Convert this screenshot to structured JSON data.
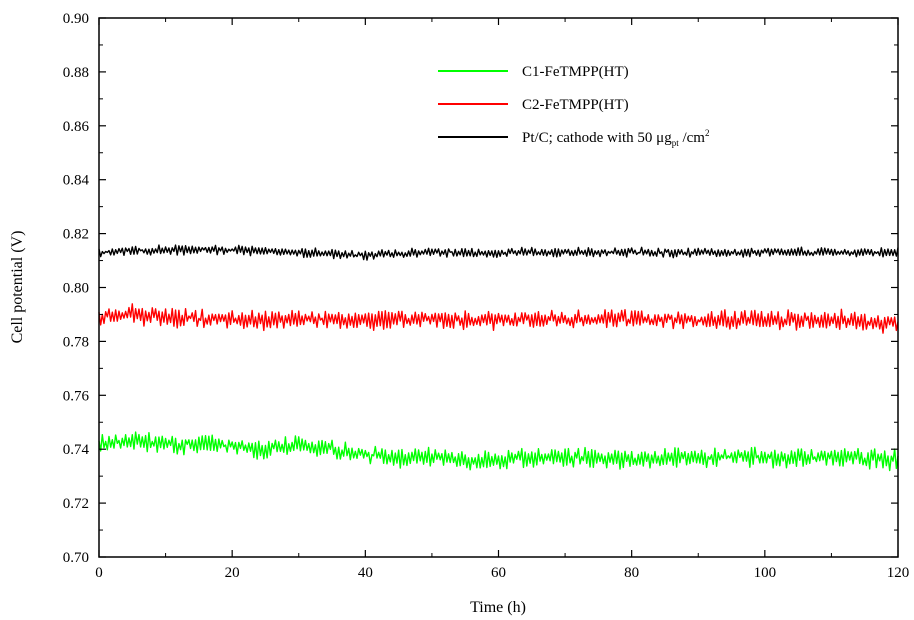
{
  "chart_data": {
    "type": "line",
    "xlabel": "Time (h)",
    "ylabel": "Cell potential (V)",
    "xlim": [
      0,
      120
    ],
    "ylim": [
      0.7,
      0.9
    ],
    "xticks": [
      0,
      20,
      40,
      60,
      80,
      100,
      120
    ],
    "yticks": [
      0.7,
      0.72,
      0.74,
      0.76,
      0.78,
      0.8,
      0.82,
      0.84,
      0.86,
      0.88,
      0.9
    ],
    "xtick_labels": [
      "0",
      "20",
      "40",
      "60",
      "80",
      "100",
      "120"
    ],
    "ytick_labels": [
      "0.70",
      "0.72",
      "0.74",
      "0.76",
      "0.78",
      "0.80",
      "0.82",
      "0.84",
      "0.86",
      "0.88",
      "0.90"
    ],
    "grid": false,
    "legend_position": "top-right",
    "series": [
      {
        "name": "C1-FeTMPP(HT)",
        "color": "#00ff00",
        "base": [
          [
            0,
            0.742
          ],
          [
            5,
            0.743
          ],
          [
            10,
            0.742
          ],
          [
            15,
            0.742
          ],
          [
            20,
            0.741
          ],
          [
            25,
            0.74
          ],
          [
            30,
            0.742
          ],
          [
            35,
            0.74
          ],
          [
            40,
            0.738
          ],
          [
            45,
            0.737
          ],
          [
            50,
            0.737
          ],
          [
            55,
            0.736
          ],
          [
            60,
            0.736
          ],
          [
            70,
            0.737
          ],
          [
            80,
            0.736
          ],
          [
            90,
            0.737
          ],
          [
            100,
            0.737
          ],
          [
            110,
            0.737
          ],
          [
            120,
            0.736
          ]
        ],
        "amplitude": 0.004
      },
      {
        "name": "C2-FeTMPP(HT)",
        "color": "#ff0000",
        "base": [
          [
            0,
            0.789
          ],
          [
            5,
            0.79
          ],
          [
            10,
            0.789
          ],
          [
            20,
            0.788
          ],
          [
            30,
            0.788
          ],
          [
            40,
            0.788
          ],
          [
            50,
            0.788
          ],
          [
            60,
            0.788
          ],
          [
            70,
            0.788
          ],
          [
            80,
            0.788
          ],
          [
            90,
            0.788
          ],
          [
            100,
            0.788
          ],
          [
            110,
            0.788
          ],
          [
            120,
            0.787
          ]
        ],
        "amplitude": 0.004
      },
      {
        "name": "Pt/C; cathode with 50 μg",
        "name_sub": "pt",
        "name_tail": " /cm",
        "name_sup": "2",
        "color": "#000000",
        "base": [
          [
            0,
            0.813
          ],
          [
            10,
            0.814
          ],
          [
            20,
            0.814
          ],
          [
            30,
            0.813
          ],
          [
            40,
            0.812
          ],
          [
            50,
            0.813
          ],
          [
            60,
            0.813
          ],
          [
            70,
            0.813
          ],
          [
            80,
            0.813
          ],
          [
            90,
            0.813
          ],
          [
            100,
            0.813
          ],
          [
            110,
            0.813
          ],
          [
            120,
            0.813
          ]
        ],
        "amplitude": 0.002
      }
    ]
  }
}
